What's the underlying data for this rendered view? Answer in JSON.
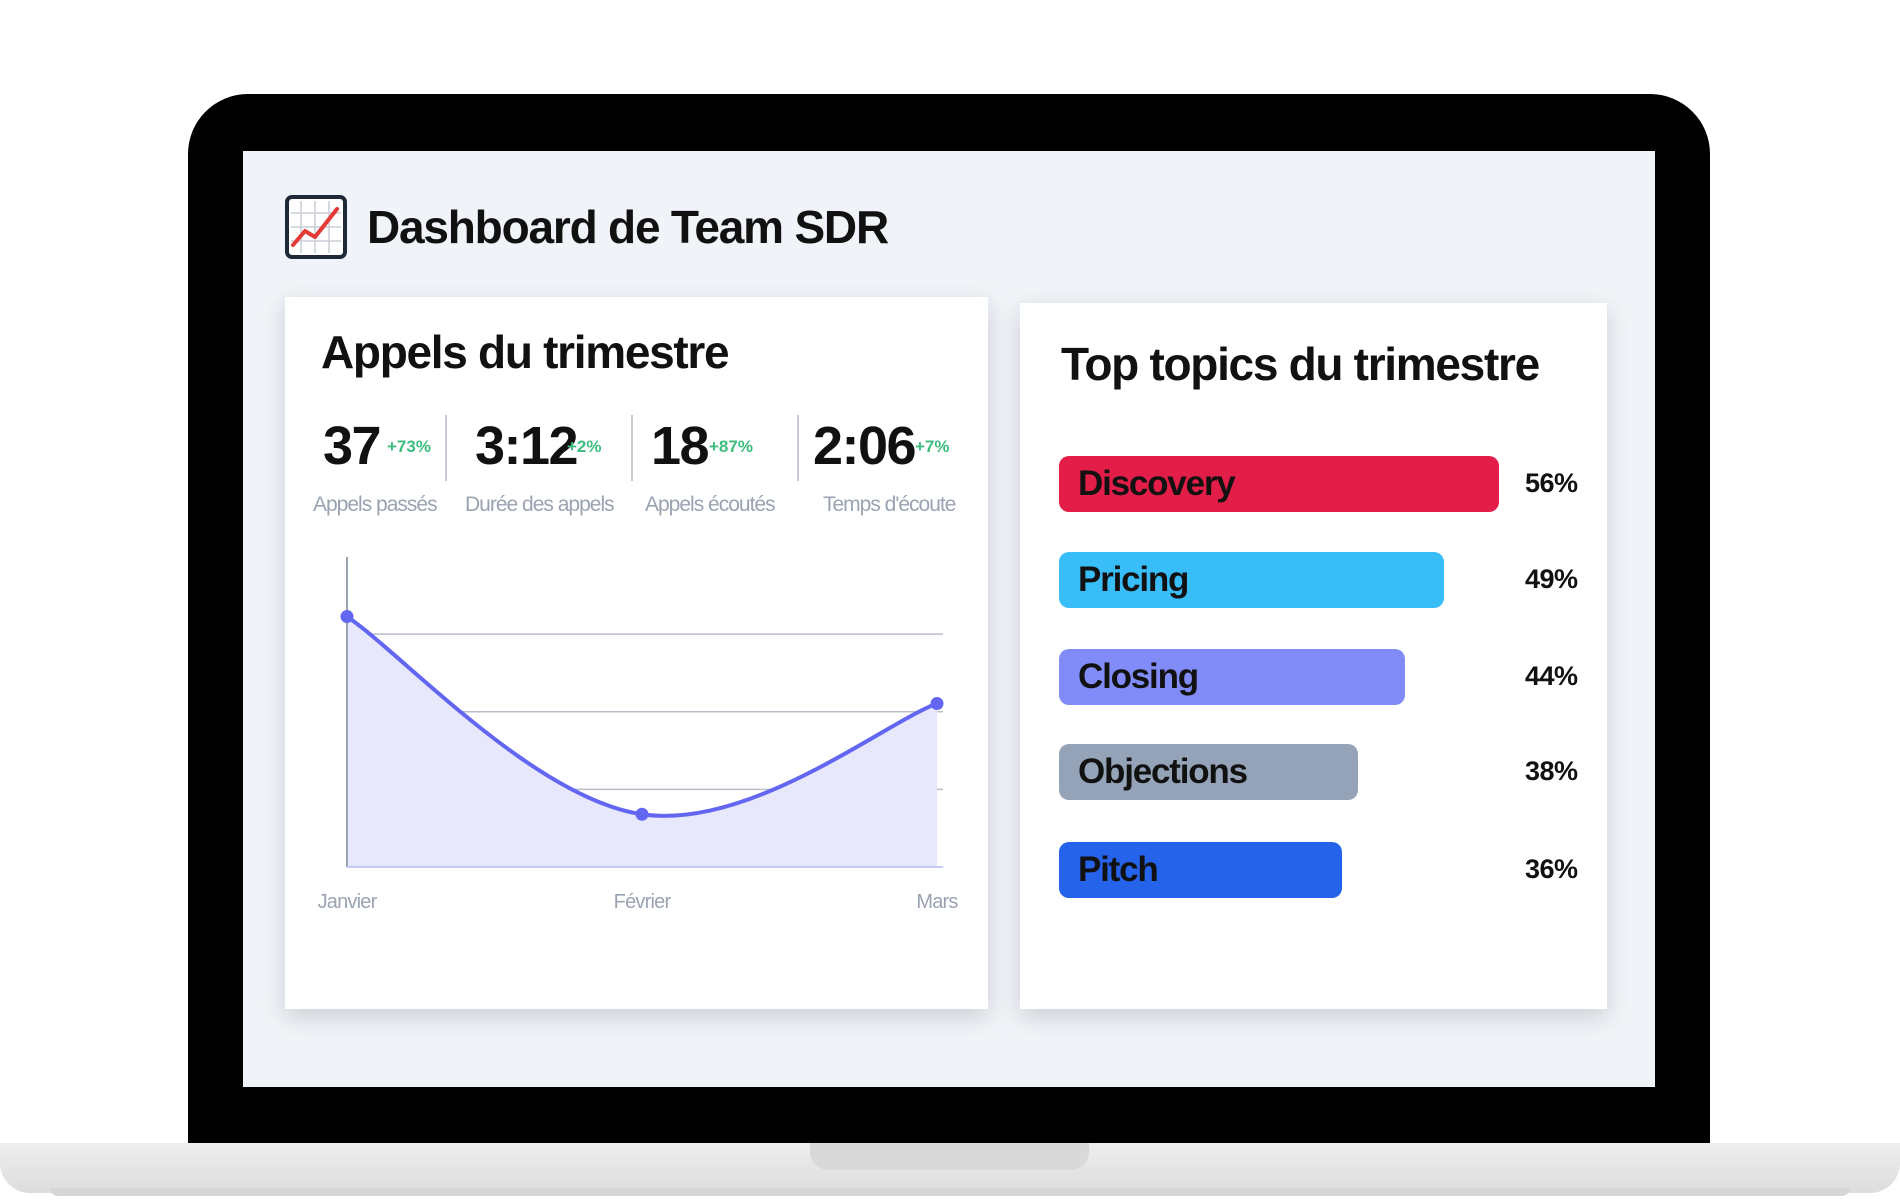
{
  "page": {
    "title": "Dashboard de Team SDR",
    "title_icon": "chart-increasing-icon"
  },
  "calls_card": {
    "title": "Appels du trimestre",
    "stats": [
      {
        "value": "37",
        "delta": "+73%",
        "label": "Appels passés"
      },
      {
        "value": "3:12",
        "delta": "+2%",
        "label": "Durée des appels"
      },
      {
        "value": "18",
        "delta": "+87%",
        "label": "Appels écoutés"
      },
      {
        "value": "2:06",
        "delta": "+7%",
        "label": "Temps d'écoute"
      }
    ],
    "delta_color": "#3dbd7d"
  },
  "topics_card": {
    "title": "Top topics du trimestre",
    "topics": [
      {
        "label": "Discovery",
        "value": "56%",
        "color": "#e11d48"
      },
      {
        "label": "Pricing",
        "value": "49%",
        "color": "#38bdf8"
      },
      {
        "label": "Closing",
        "value": "44%",
        "color": "#818cf8"
      },
      {
        "label": "Objections",
        "value": "38%",
        "color": "#94a3b8"
      },
      {
        "label": "Pitch",
        "value": "36%",
        "color": "#2563eb"
      }
    ]
  },
  "chart_data": {
    "type": "area",
    "categories": [
      "Janvier",
      "Février",
      "Mars"
    ],
    "series": [
      {
        "values": [
          0.95,
          0.2,
          0.62
        ]
      }
    ],
    "ylim": [
      0,
      1.1
    ],
    "grid": true,
    "y_tick_labels": false,
    "line_color": "#6366f1",
    "fill_color": "#e7e8fb"
  },
  "bar_chart": {
    "type": "bar",
    "orientation": "horizontal",
    "categories": [
      "Discovery",
      "Pricing",
      "Closing",
      "Objections",
      "Pitch"
    ],
    "values": [
      56,
      49,
      44,
      38,
      36
    ],
    "unit": "%"
  }
}
